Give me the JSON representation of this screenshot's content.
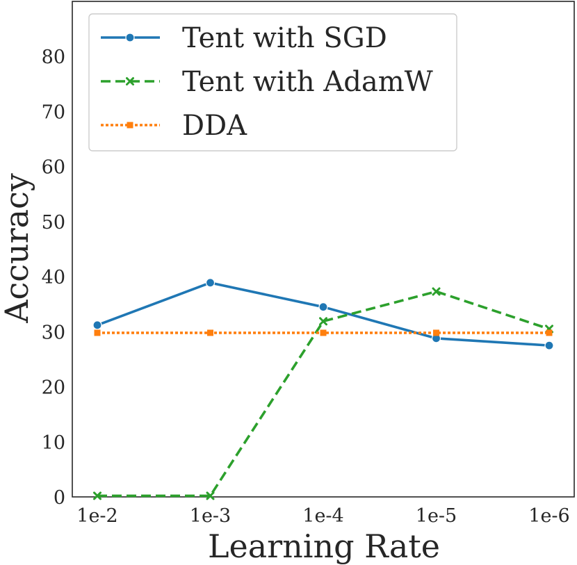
{
  "chart_data": {
    "type": "line",
    "title": "",
    "xlabel": "Learning Rate",
    "ylabel": "Accuracy",
    "categories": [
      "1e-2",
      "1e-3",
      "1e-4",
      "1e-5",
      "1e-6"
    ],
    "ylim": [
      0,
      90
    ],
    "yticks": [
      0,
      10,
      20,
      30,
      40,
      50,
      60,
      70,
      80
    ],
    "grid": false,
    "legend_position": "top-left",
    "series": [
      {
        "name": "Tent with SGD",
        "values": [
          31.2,
          38.9,
          34.5,
          28.8,
          27.5
        ],
        "color": "#1f77b4",
        "style": "solid",
        "marker": "circle"
      },
      {
        "name": "Tent with AdamW",
        "values": [
          0.2,
          0.2,
          31.9,
          37.3,
          30.5
        ],
        "color": "#2ca02c",
        "style": "dashed",
        "marker": "x"
      },
      {
        "name": "DDA",
        "values": [
          29.8,
          29.8,
          29.8,
          29.8,
          29.8
        ],
        "color": "#ff7f0e",
        "style": "dotted",
        "marker": "square"
      }
    ]
  }
}
